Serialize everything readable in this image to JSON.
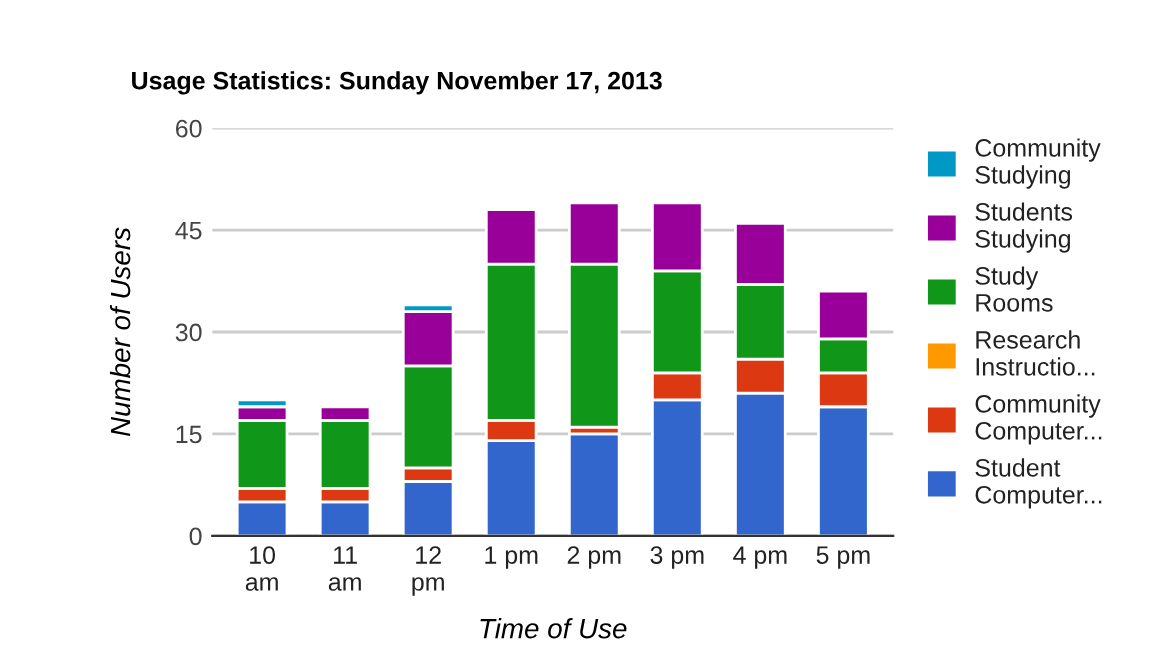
{
  "chart_data": {
    "type": "bar",
    "title": "Usage Statistics: Sunday November 17, 2013",
    "xlabel": "Time of Use",
    "ylabel": "Number of Users",
    "categories": [
      "10\nam",
      "11\nam",
      "12\npm",
      "1 pm",
      "2 pm",
      "3 pm",
      "4 pm",
      "5 pm"
    ],
    "stacked": true,
    "ylim": [
      0,
      60
    ],
    "yticks": [
      0,
      15,
      30,
      45,
      60
    ],
    "grid": "y",
    "legend": "right",
    "series": [
      {
        "name": "Student\nComputer...",
        "color": "#3366cc",
        "values": [
          5,
          5,
          8,
          14,
          15,
          20,
          21,
          19
        ]
      },
      {
        "name": "Community\nComputer...",
        "color": "#dc3912",
        "values": [
          2,
          2,
          2,
          3,
          1,
          4,
          5,
          5
        ]
      },
      {
        "name": "Research\nInstructio...",
        "color": "#ff9900",
        "values": [
          null,
          null,
          null,
          null,
          null,
          null,
          null,
          null
        ]
      },
      {
        "name": "Study\nRooms",
        "color": "#109618",
        "values": [
          10,
          10,
          15,
          23,
          24,
          15,
          11,
          5
        ]
      },
      {
        "name": "Students\nStudying",
        "color": "#990099",
        "values": [
          2,
          2,
          8,
          8,
          9,
          10,
          9,
          7
        ]
      },
      {
        "name": "Community\nStudying",
        "color": "#0099c6",
        "values": [
          1,
          0,
          1,
          0,
          0,
          0,
          0,
          0
        ]
      }
    ]
  }
}
